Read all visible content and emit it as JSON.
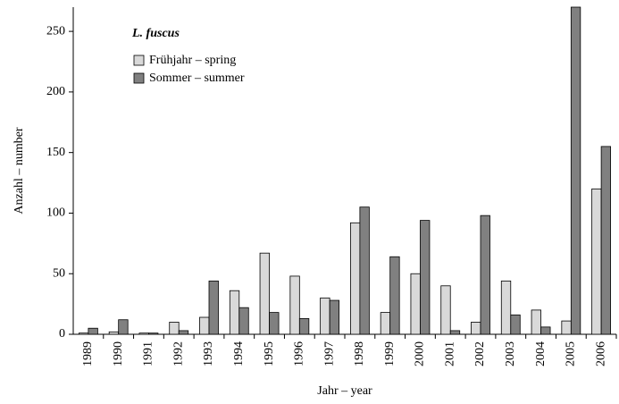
{
  "chart_data": {
    "type": "bar",
    "legend_title": "L. fuscus",
    "x_label": "Jahr – year",
    "y_label": "Anzahl – number",
    "categories": [
      "1989",
      "1990",
      "1991",
      "1992",
      "1993",
      "1994",
      "1995",
      "1996",
      "1997",
      "1998",
      "1999",
      "2000",
      "2001",
      "2002",
      "2003",
      "2004",
      "2005",
      "2006"
    ],
    "series": [
      {
        "name": "Frühjahr – spring",
        "color": "#d9d9d9",
        "values": [
          1,
          2,
          1,
          10,
          14,
          36,
          67,
          48,
          30,
          92,
          18,
          50,
          40,
          10,
          44,
          20,
          11,
          120
        ]
      },
      {
        "name": "Sommer – summer",
        "color": "#808080",
        "values": [
          5,
          12,
          1,
          3,
          44,
          22,
          18,
          13,
          28,
          105,
          64,
          94,
          3,
          98,
          16,
          6,
          270,
          155
        ]
      }
    ],
    "ylim": [
      0,
      270
    ],
    "yticks": [
      0,
      50,
      100,
      150,
      200,
      250
    ],
    "legend": "upper-left",
    "grid": false
  }
}
